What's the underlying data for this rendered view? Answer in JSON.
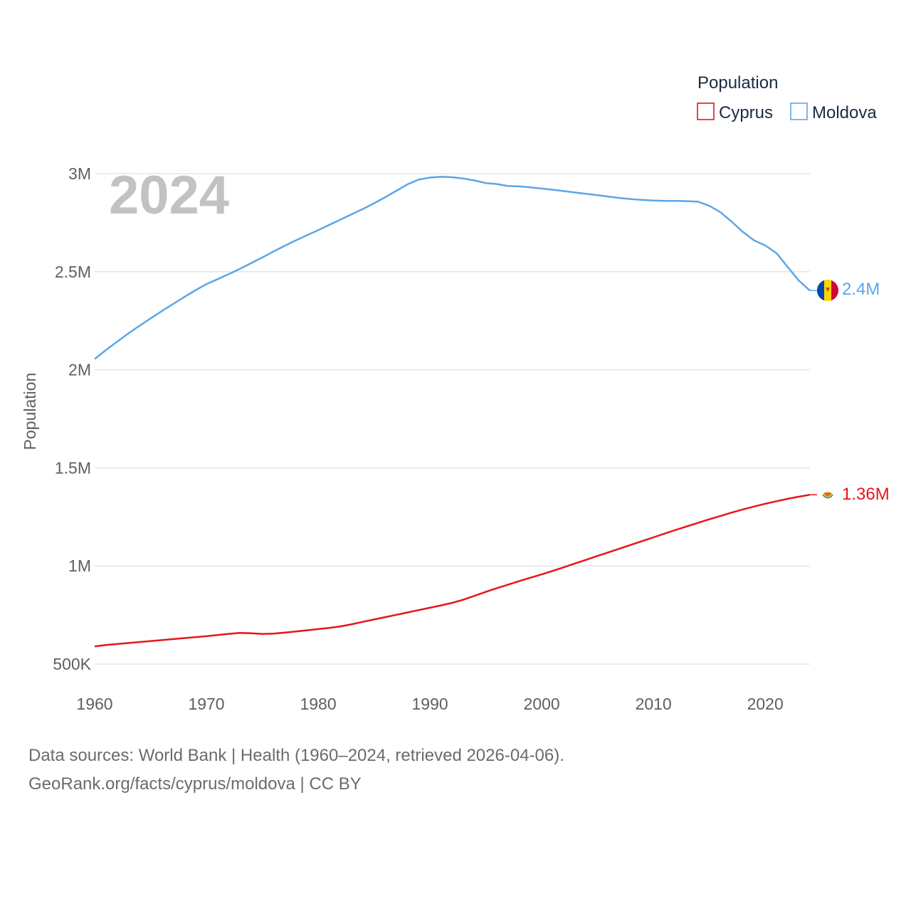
{
  "chart_data": {
    "type": "line",
    "year_badge": "2024",
    "ylabel": "Population",
    "legend_title": "Population",
    "xlim": [
      1960,
      2024
    ],
    "ylim": [
      500000,
      3000000
    ],
    "x_ticks": [
      "1960",
      "1970",
      "1980",
      "1990",
      "2000",
      "2010",
      "2020"
    ],
    "y_ticks": [
      {
        "value": 500000,
        "label": "500K"
      },
      {
        "value": 1000000,
        "label": "1M"
      },
      {
        "value": 1500000,
        "label": "1.5M"
      },
      {
        "value": 2000000,
        "label": "2M"
      },
      {
        "value": 2500000,
        "label": "2.5M"
      },
      {
        "value": 3000000,
        "label": "3M"
      }
    ],
    "series": [
      {
        "name": "Cyprus",
        "color": "#e8141c",
        "end_label": "1.36M",
        "icon": "cyprus-flag-icon",
        "points": [
          [
            1960,
            590000
          ],
          [
            1961,
            597000
          ],
          [
            1962,
            602000
          ],
          [
            1963,
            607000
          ],
          [
            1964,
            612000
          ],
          [
            1965,
            617000
          ],
          [
            1966,
            622000
          ],
          [
            1967,
            627000
          ],
          [
            1968,
            632000
          ],
          [
            1969,
            637000
          ],
          [
            1970,
            642000
          ],
          [
            1971,
            648000
          ],
          [
            1972,
            654000
          ],
          [
            1973,
            659000
          ],
          [
            1974,
            657000
          ],
          [
            1975,
            653000
          ],
          [
            1976,
            655000
          ],
          [
            1977,
            660000
          ],
          [
            1978,
            666000
          ],
          [
            1979,
            672000
          ],
          [
            1980,
            678000
          ],
          [
            1981,
            684000
          ],
          [
            1982,
            692000
          ],
          [
            1983,
            703000
          ],
          [
            1984,
            715000
          ],
          [
            1985,
            727000
          ],
          [
            1986,
            739000
          ],
          [
            1987,
            751000
          ],
          [
            1988,
            763000
          ],
          [
            1989,
            775000
          ],
          [
            1990,
            787000
          ],
          [
            1991,
            799000
          ],
          [
            1992,
            812000
          ],
          [
            1993,
            828000
          ],
          [
            1994,
            848000
          ],
          [
            1995,
            868000
          ],
          [
            1996,
            887000
          ],
          [
            1997,
            905000
          ],
          [
            1998,
            923000
          ],
          [
            1999,
            940000
          ],
          [
            2000,
            957000
          ],
          [
            2001,
            975000
          ],
          [
            2002,
            994000
          ],
          [
            2003,
            1013000
          ],
          [
            2004,
            1032000
          ],
          [
            2005,
            1051000
          ],
          [
            2006,
            1070000
          ],
          [
            2007,
            1089000
          ],
          [
            2008,
            1108000
          ],
          [
            2009,
            1127000
          ],
          [
            2010,
            1146000
          ],
          [
            2011,
            1165000
          ],
          [
            2012,
            1184000
          ],
          [
            2013,
            1202000
          ],
          [
            2014,
            1220000
          ],
          [
            2015,
            1238000
          ],
          [
            2016,
            1255000
          ],
          [
            2017,
            1272000
          ],
          [
            2018,
            1288000
          ],
          [
            2019,
            1303000
          ],
          [
            2020,
            1317000
          ],
          [
            2021,
            1330000
          ],
          [
            2022,
            1342000
          ],
          [
            2023,
            1353000
          ],
          [
            2024,
            1363000
          ]
        ]
      },
      {
        "name": "Moldova",
        "color": "#5ba6e8",
        "end_label": "2.4M",
        "icon": "moldova-flag-icon",
        "points": [
          [
            1960,
            2055000
          ],
          [
            1961,
            2100000
          ],
          [
            1962,
            2143000
          ],
          [
            1963,
            2185000
          ],
          [
            1964,
            2224000
          ],
          [
            1965,
            2262000
          ],
          [
            1966,
            2299000
          ],
          [
            1967,
            2335000
          ],
          [
            1968,
            2370000
          ],
          [
            1969,
            2405000
          ],
          [
            1970,
            2437000
          ],
          [
            1971,
            2462000
          ],
          [
            1972,
            2488000
          ],
          [
            1973,
            2515000
          ],
          [
            1974,
            2544000
          ],
          [
            1975,
            2573000
          ],
          [
            1976,
            2603000
          ],
          [
            1977,
            2632000
          ],
          [
            1978,
            2660000
          ],
          [
            1979,
            2686000
          ],
          [
            1980,
            2712000
          ],
          [
            1981,
            2739000
          ],
          [
            1982,
            2766000
          ],
          [
            1983,
            2793000
          ],
          [
            1984,
            2820000
          ],
          [
            1985,
            2849000
          ],
          [
            1986,
            2880000
          ],
          [
            1987,
            2913000
          ],
          [
            1988,
            2946000
          ],
          [
            1989,
            2970000
          ],
          [
            1990,
            2980000
          ],
          [
            1991,
            2984000
          ],
          [
            1992,
            2982000
          ],
          [
            1993,
            2975000
          ],
          [
            1994,
            2965000
          ],
          [
            1995,
            2952000
          ],
          [
            1996,
            2947000
          ],
          [
            1997,
            2937000
          ],
          [
            1998,
            2935000
          ],
          [
            1999,
            2930000
          ],
          [
            2000,
            2924000
          ],
          [
            2001,
            2918000
          ],
          [
            2002,
            2911000
          ],
          [
            2003,
            2904000
          ],
          [
            2004,
            2897000
          ],
          [
            2005,
            2890000
          ],
          [
            2006,
            2883000
          ],
          [
            2007,
            2876000
          ],
          [
            2008,
            2870000
          ],
          [
            2009,
            2866000
          ],
          [
            2010,
            2863000
          ],
          [
            2011,
            2861000
          ],
          [
            2012,
            2861000
          ],
          [
            2013,
            2860000
          ],
          [
            2014,
            2857000
          ],
          [
            2015,
            2836000
          ],
          [
            2016,
            2803000
          ],
          [
            2017,
            2755000
          ],
          [
            2018,
            2703000
          ],
          [
            2019,
            2660000
          ],
          [
            2020,
            2634000
          ],
          [
            2021,
            2595000
          ],
          [
            2022,
            2525000
          ],
          [
            2023,
            2455000
          ],
          [
            2024,
            2404000
          ]
        ]
      }
    ]
  },
  "footer": {
    "line1": "Data sources: World Bank | Health (1960–2024, retrieved 2026-04-06).",
    "line2": "GeoRank.org/facts/cyprus/moldova | CC BY"
  }
}
